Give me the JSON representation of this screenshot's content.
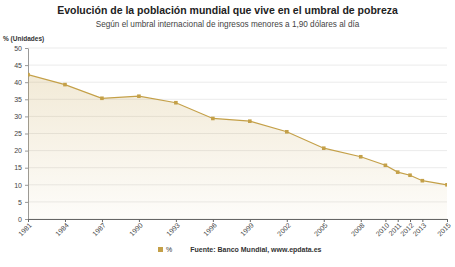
{
  "chart_data": {
    "type": "area",
    "title": "Evolución de la población mundial que vive en el umbral de pobreza",
    "subtitle": "Según el umbral internacional de ingresos menores a 1,90 dólares al día",
    "y_label": "% (Unidades)",
    "source": "Fuente: Banco Mundial, www.epdata.es",
    "x": [
      1981,
      1984,
      1987,
      1990,
      1993,
      1996,
      1999,
      2002,
      2005,
      2008,
      2010,
      2011,
      2012,
      2013,
      2015
    ],
    "series": [
      {
        "name": "%",
        "color": "#c4a048",
        "values": [
          42.2,
          39.3,
          35.3,
          35.9,
          34.0,
          29.4,
          28.6,
          25.5,
          20.7,
          18.2,
          15.7,
          13.7,
          12.8,
          11.2,
          10.0
        ]
      }
    ],
    "xlim": [
      1981,
      2015
    ],
    "xticks": [
      1981,
      1984,
      1987,
      1990,
      1993,
      1996,
      1999,
      2002,
      2005,
      2008,
      2010,
      2011,
      2012,
      2013,
      2015
    ],
    "ylim": [
      0,
      50
    ],
    "yticks": [
      0,
      5,
      10,
      15,
      20,
      25,
      30,
      35,
      40,
      45,
      50
    ],
    "grid": true,
    "marker": "square",
    "legend": "bottom"
  }
}
